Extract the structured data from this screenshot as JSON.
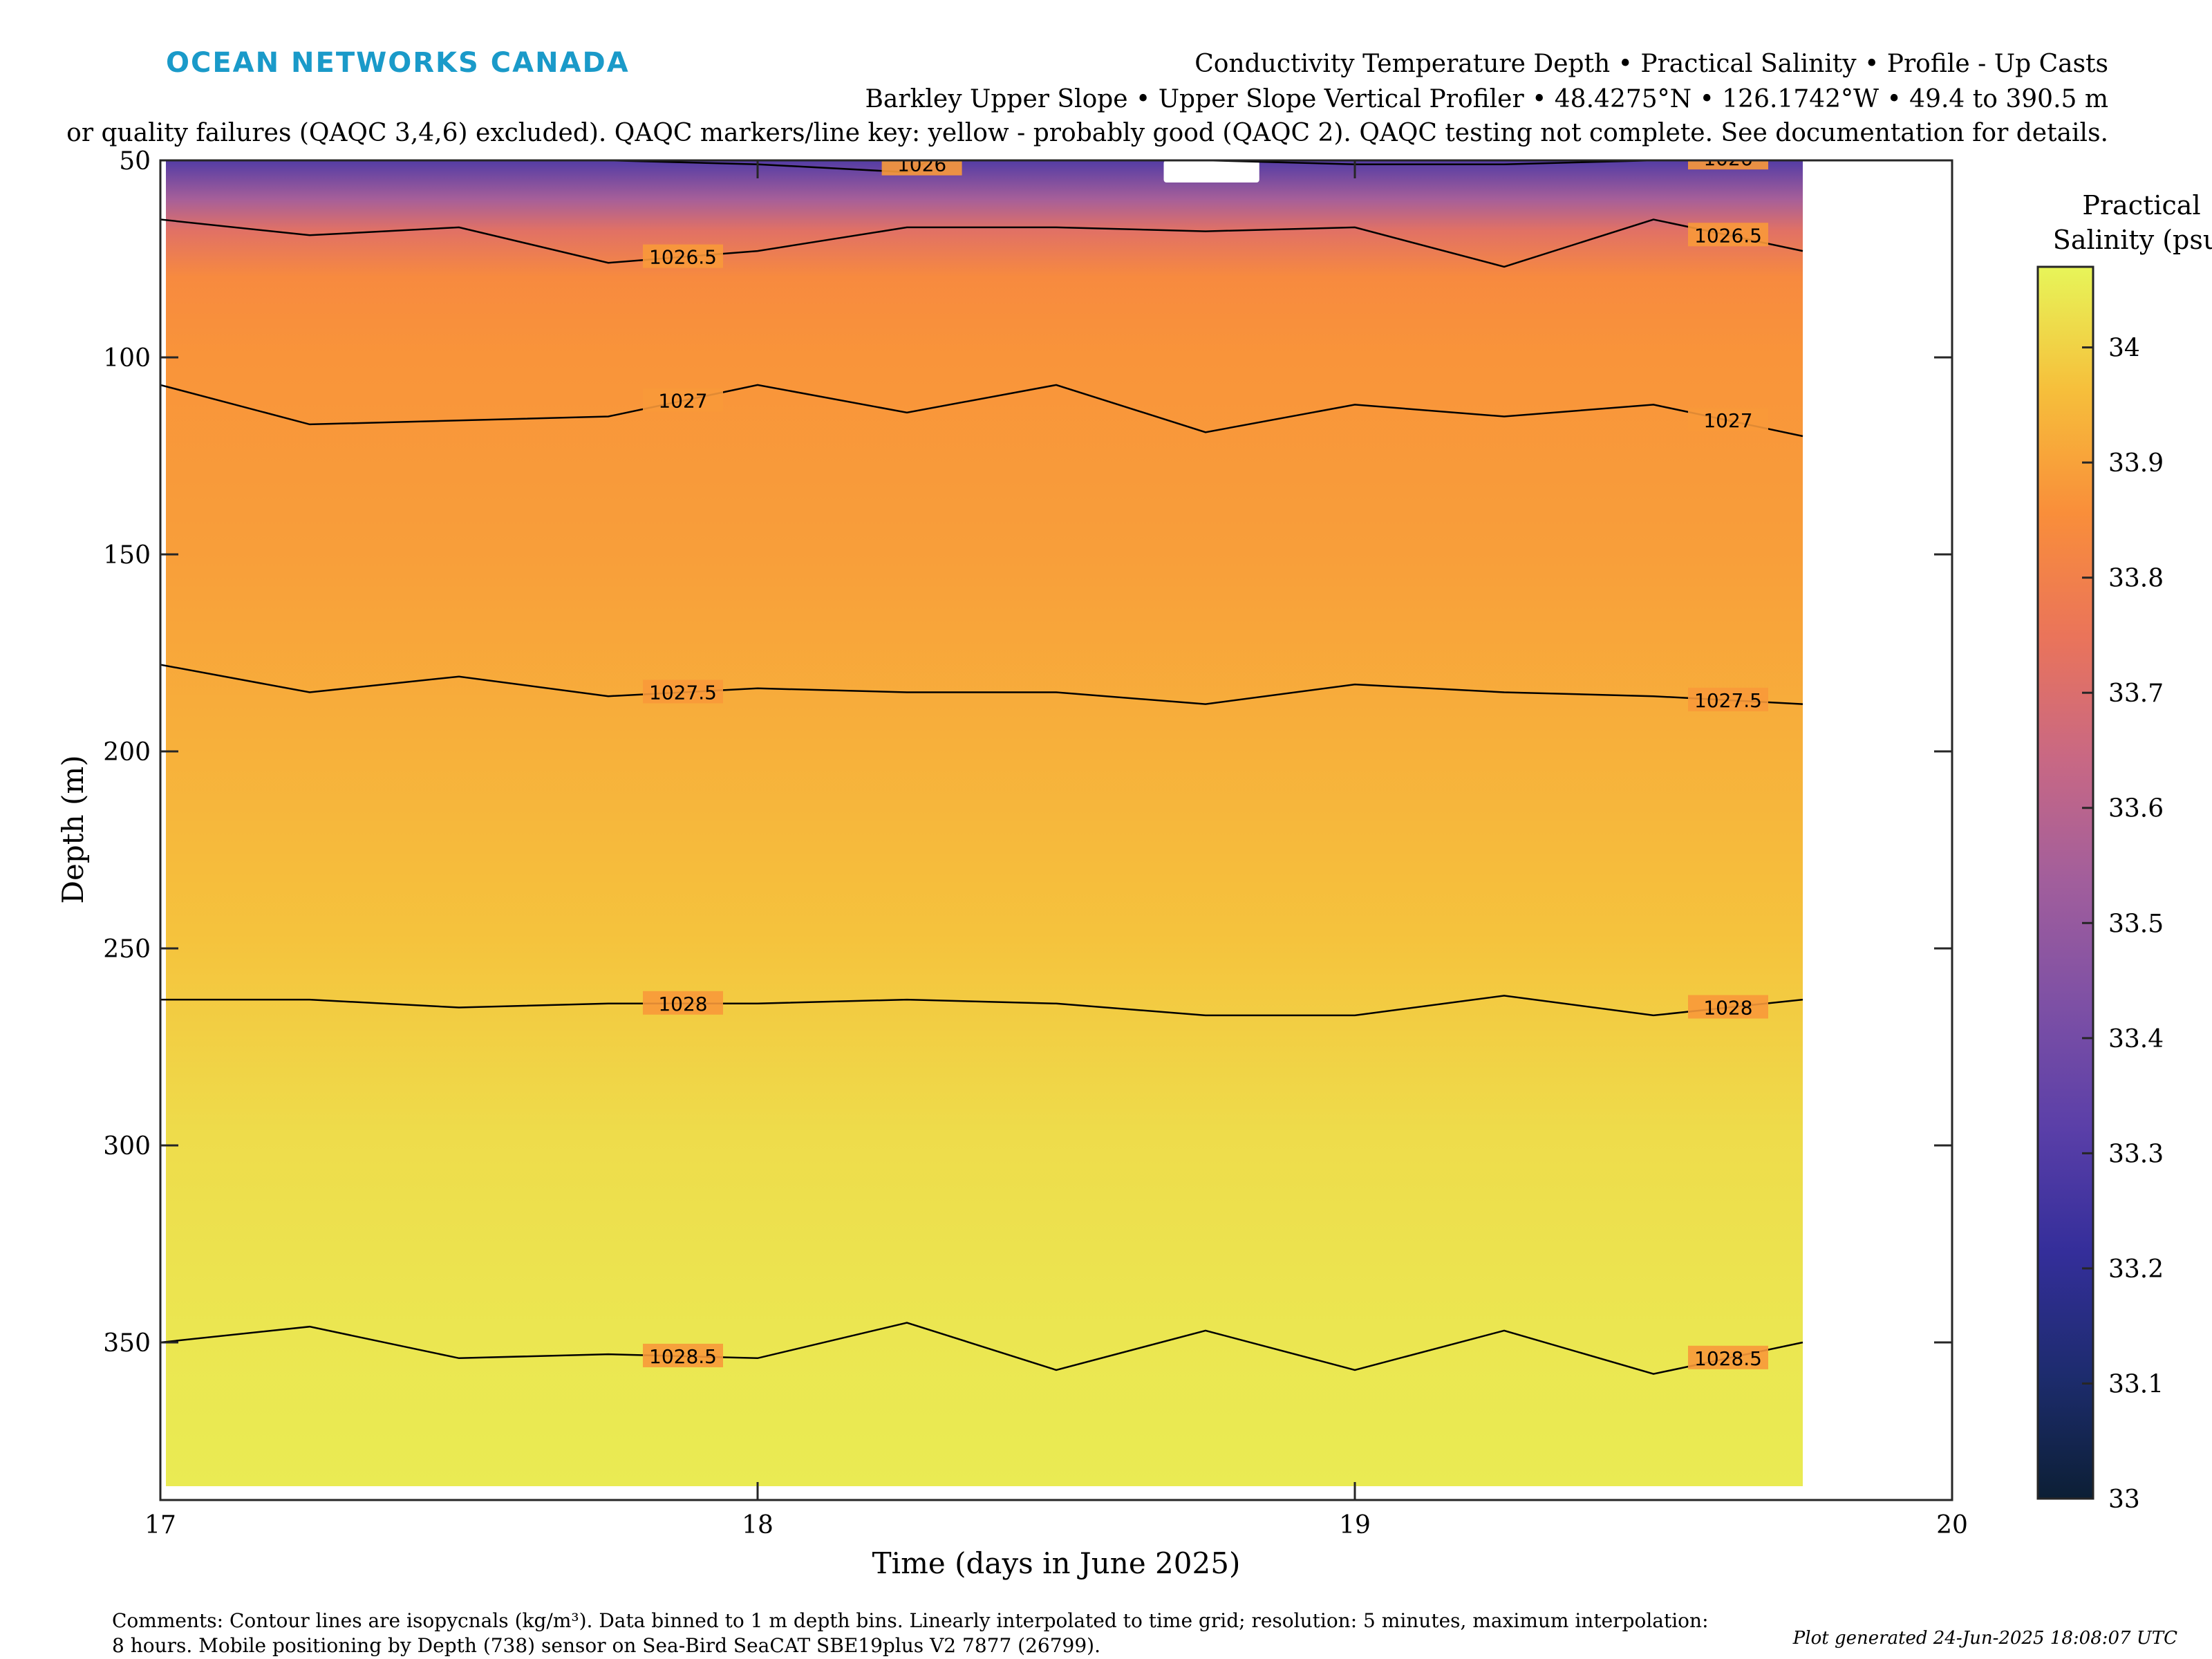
{
  "brand": {
    "name": "OCEAN NETWORKS CANADA",
    "color": "#1a9ac9"
  },
  "header": {
    "line1": "Conductivity Temperature Depth • Practical Salinity • Profile - Up Casts",
    "line2": "Barkley Upper Slope • Upper Slope Vertical Profiler • 48.4275°N • 126.1742°W • 49.4 to 390.5 m",
    "line3": "or quality failures (QAQC 3,4,6) excluded). QAQC markers/line key: yellow - probably good (QAQC 2). QAQC testing not complete. See documentation for details."
  },
  "colorbar": {
    "title_line1": "Practical",
    "title_line2": "Salinity (psu)",
    "min": 33,
    "max": 34.07,
    "ticks": [
      "33",
      "33.1",
      "33.2",
      "33.3",
      "33.4",
      "33.5",
      "33.6",
      "33.7",
      "33.8",
      "33.9",
      "34"
    ]
  },
  "comments": {
    "line1": "Comments: Contour lines are isopycnals (kg/m³). Data binned to 1 m depth bins. Linearly interpolated to time grid; resolution: 5 minutes, maximum interpolation:",
    "line2": "8 hours. Mobile positioning by Depth (738) sensor on Sea-Bird SeaCAT SBE19plus V2 7877 (26799)."
  },
  "generated": "Plot generated 24-Jun-2025 18:08:07 UTC",
  "chart_data": {
    "type": "heatmap",
    "xlabel": "Time (days in June 2025)",
    "ylabel": "Depth (m)",
    "xlim": [
      17,
      20
    ],
    "ylim": [
      50,
      390
    ],
    "y_reversed": true,
    "x_ticks": [
      "17",
      "18",
      "19",
      "20"
    ],
    "y_ticks": [
      "50",
      "100",
      "150",
      "200",
      "250",
      "300",
      "350"
    ],
    "data_extent_x": [
      17.0,
      19.75
    ],
    "salinity_profile": {
      "depth": [
        50,
        60,
        68,
        80,
        100,
        150,
        200,
        250,
        300,
        350,
        390
      ],
      "salinity": [
        33.3,
        33.55,
        33.72,
        33.84,
        33.87,
        33.89,
        33.93,
        33.97,
        34.02,
        34.04,
        34.05
      ]
    },
    "contours": [
      {
        "label": "1026",
        "x": [
          17.0,
          17.5,
          18.0,
          18.25,
          18.3,
          18.5,
          19.0,
          19.25,
          19.5,
          19.75
        ],
        "depth": [
          49,
          49,
          51,
          53,
          49,
          49,
          51,
          51,
          50,
          49
        ]
      },
      {
        "label": "1026.5",
        "x": [
          17.0,
          17.25,
          17.5,
          17.75,
          18.0,
          18.25,
          18.5,
          18.75,
          19.0,
          19.25,
          19.5,
          19.75
        ],
        "depth": [
          65,
          69,
          67,
          76,
          73,
          67,
          67,
          68,
          67,
          77,
          65,
          73
        ]
      },
      {
        "label": "1027",
        "x": [
          17.0,
          17.25,
          17.5,
          17.75,
          18.0,
          18.25,
          18.5,
          18.75,
          19.0,
          19.25,
          19.5,
          19.75
        ],
        "depth": [
          107,
          117,
          116,
          115,
          107,
          114,
          107,
          119,
          112,
          115,
          112,
          120
        ]
      },
      {
        "label": "1027.5",
        "x": [
          17.0,
          17.25,
          17.5,
          17.75,
          18.0,
          18.25,
          18.5,
          18.75,
          19.0,
          19.25,
          19.5,
          19.75
        ],
        "depth": [
          178,
          185,
          181,
          186,
          184,
          185,
          185,
          188,
          183,
          185,
          186,
          188
        ]
      },
      {
        "label": "1028",
        "x": [
          17.0,
          17.25,
          17.5,
          17.75,
          18.0,
          18.25,
          18.5,
          18.75,
          19.0,
          19.25,
          19.5,
          19.75
        ],
        "depth": [
          263,
          263,
          265,
          264,
          264,
          263,
          264,
          267,
          267,
          262,
          267,
          263
        ]
      },
      {
        "label": "1028.5",
        "x": [
          17.0,
          17.25,
          17.5,
          17.75,
          18.0,
          18.25,
          18.5,
          18.75,
          19.0,
          19.25,
          19.5,
          19.75
        ],
        "depth": [
          350,
          346,
          354,
          353,
          354,
          345,
          357,
          347,
          357,
          347,
          358,
          350
        ]
      }
    ]
  }
}
